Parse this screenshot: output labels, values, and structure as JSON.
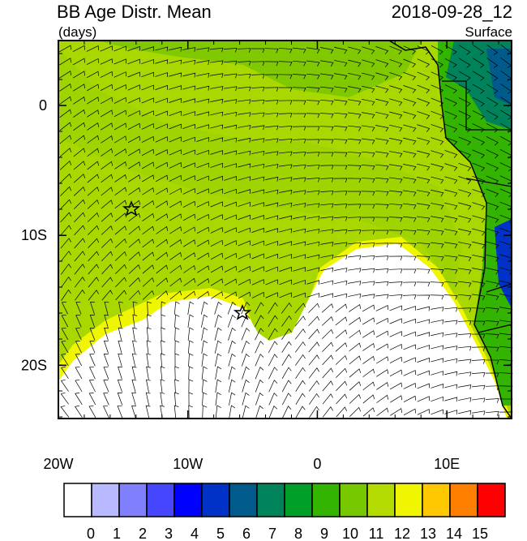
{
  "header": {
    "title": "BB Age Distr. Mean",
    "units": "(days)",
    "time": "2018-09-28_12",
    "level": "Surface"
  },
  "map": {
    "lon_range": [
      -20,
      15
    ],
    "lat_range": [
      5,
      -24.1
    ],
    "lon_ticks": [
      {
        "value": -20,
        "label": "20W"
      },
      {
        "value": -10,
        "label": "10W"
      },
      {
        "value": 0,
        "label": "0"
      },
      {
        "value": 10,
        "label": "10E"
      }
    ],
    "lat_ticks": [
      {
        "value": 0,
        "label": "0"
      },
      {
        "value": -10,
        "label": "10S"
      },
      {
        "value": -20,
        "label": "20S"
      }
    ]
  },
  "colorbar": {
    "levels": [
      0,
      1,
      2,
      3,
      4,
      5,
      6,
      7,
      8,
      9,
      10,
      11,
      12,
      13,
      14,
      15
    ],
    "colors": [
      "#ffffff",
      "#b9b9ff",
      "#8080ff",
      "#4646ff",
      "#0000ff",
      "#0032c8",
      "#005a8c",
      "#00825a",
      "#00a028",
      "#32b400",
      "#78c800",
      "#b4dc00",
      "#f0f500",
      "#ffc800",
      "#ff8000",
      "#ff0000"
    ]
  }
}
